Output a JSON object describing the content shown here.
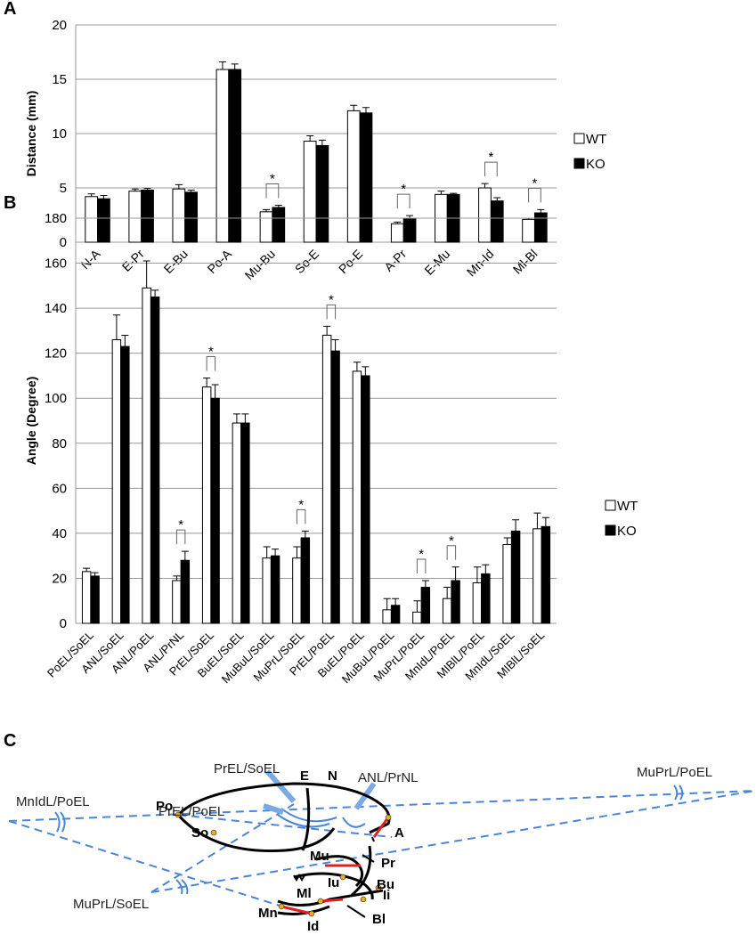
{
  "chart_data": [
    {
      "type": "bar",
      "label": "A",
      "y_label": "Distance (mm)",
      "categories": [
        "N-A",
        "E-Pr",
        "E-Bu",
        "Po-A",
        "Mu-Bu",
        "So-E",
        "Po-E",
        "A-Pr",
        "E-Mu",
        "Mn-Id",
        "Ml-Bl"
      ],
      "series": [
        {
          "name": "WT",
          "color": "#ffffff",
          "values": [
            4.2,
            4.7,
            4.9,
            15.9,
            2.8,
            9.3,
            12.1,
            1.7,
            4.4,
            5.0,
            2.1
          ],
          "errors": [
            0.25,
            0.2,
            0.4,
            0.7,
            0.2,
            0.5,
            0.5,
            0.15,
            0.3,
            0.4,
            0.1
          ]
        },
        {
          "name": "KO",
          "color": "#000000",
          "values": [
            4.0,
            4.8,
            4.6,
            15.9,
            3.2,
            8.9,
            11.9,
            2.2,
            4.4,
            3.8,
            2.7
          ],
          "errors": [
            0.3,
            0.15,
            0.2,
            0.5,
            0.2,
            0.5,
            0.5,
            0.25,
            0.1,
            0.3,
            0.3
          ]
        }
      ],
      "ylim": [
        0,
        20
      ],
      "yticks": [
        0,
        5,
        10,
        15,
        20
      ],
      "grid": true,
      "legend": "right",
      "annotations": [
        {
          "category": "Mu-Bu",
          "text": "*"
        },
        {
          "category": "A-Pr",
          "text": "*"
        },
        {
          "category": "Mn-Id",
          "text": "*"
        },
        {
          "category": "Ml-Bl",
          "text": "*"
        }
      ]
    },
    {
      "type": "bar",
      "label": "B",
      "y_label": "Angle (Degree)",
      "categories": [
        "PoEL/SoEL",
        "ANL/SoEL",
        "ANL/PoEL",
        "ANL/PrNL",
        "PrEL/SoEL",
        "BuEL/SoEL",
        "MuBuL/SoEL",
        "MuPrL/SoEL",
        "PrEL/PoEL",
        "BuEL/PoEL",
        "MuBuL/PoEL",
        "MuPrL/PoEL",
        "MnIdL/PoEL",
        "MIBlL/PoEL",
        "MnIdL/SoEL",
        "MIBlL/SoEL"
      ],
      "series": [
        {
          "name": "WT",
          "color": "#ffffff",
          "values": [
            23,
            126,
            149,
            19,
            105,
            89,
            29,
            29,
            128,
            112,
            6,
            5,
            11,
            18,
            35,
            42
          ],
          "errors": [
            1.5,
            11,
            12,
            2,
            4,
            4,
            5,
            5,
            4,
            4,
            5,
            5,
            5,
            7,
            3,
            7
          ]
        },
        {
          "name": "KO",
          "color": "#000000",
          "values": [
            21,
            123,
            145,
            28,
            100,
            89,
            30,
            38,
            121,
            110,
            8,
            16,
            19,
            22,
            41,
            43
          ],
          "errors": [
            1.5,
            5,
            3,
            4,
            6,
            4,
            3,
            3,
            5,
            4,
            3,
            3,
            6,
            4,
            5,
            4
          ]
        }
      ],
      "ylim": [
        0,
        180
      ],
      "yticks": [
        0,
        20,
        40,
        60,
        80,
        100,
        120,
        140,
        160,
        180
      ],
      "grid": true,
      "legend": "right",
      "annotations": [
        {
          "category": "ANL/PrNL",
          "text": "*"
        },
        {
          "category": "PrEL/SoEL",
          "text": "*"
        },
        {
          "category": "MuPrL/SoEL",
          "text": "*"
        },
        {
          "category": "PrEL/PoEL",
          "text": "*"
        },
        {
          "category": "MuPrL/PoEL",
          "text": "*"
        },
        {
          "category": "MnIdL/PoEL",
          "text": "*"
        }
      ]
    }
  ],
  "diagram": {
    "label": "C",
    "angles": [
      "PrEL/SoEL",
      "ANL/PrNL",
      "MuPrL/PoEL",
      "MnIdL/PoEL",
      "PrEL/PoEL",
      "MuPrL/SoEL"
    ],
    "landmarks": [
      "Po",
      "E",
      "N",
      "A",
      "So",
      "Mu",
      "Pr",
      "Bu",
      "Iu",
      "Ml",
      "Ii",
      "Mn",
      "Id",
      "Bl"
    ]
  }
}
